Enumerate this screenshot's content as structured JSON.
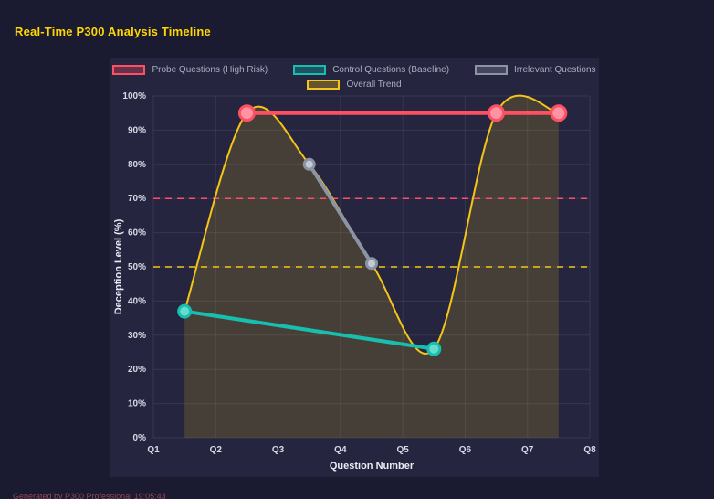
{
  "footer": {
    "text": "Generated by P300 Professional  19:05:43"
  },
  "legend": {
    "rows": [
      [
        0,
        1,
        2
      ],
      [
        3
      ]
    ]
  },
  "chart_data": {
    "type": "line",
    "title": "Real-Time P300 Analysis Timeline",
    "xlabel": "Question Number",
    "ylabel": "Deception Level (%)",
    "x_ticks": [
      "Q1",
      "Q2",
      "Q3",
      "Q4",
      "Q5",
      "Q6",
      "Q7",
      "Q8"
    ],
    "y_ticks": [
      "0%",
      "10%",
      "20%",
      "30%",
      "40%",
      "50%",
      "60%",
      "70%",
      "80%",
      "90%",
      "100%"
    ],
    "xlim": [
      1,
      8
    ],
    "ylim": [
      0,
      100
    ],
    "grid": true,
    "legend_position": "top",
    "series": [
      {
        "name": "Probe Questions (High Risk)",
        "color": "#ff4f63",
        "point_fill": "#ff93a4",
        "x": [
          2.5,
          6.5,
          7.5
        ],
        "values": [
          95,
          95,
          95
        ],
        "line_width": 4,
        "point_radius": 8,
        "smooth": false,
        "points": true
      },
      {
        "name": "Control Questions (Baseline)",
        "color": "#16bfae",
        "point_fill": "#66dccf",
        "x": [
          1.5,
          5.5
        ],
        "values": [
          37,
          26
        ],
        "line_width": 4,
        "point_radius": 6.5,
        "smooth": false,
        "points": true
      },
      {
        "name": "Irrelevant Questions",
        "color": "#8c94a4",
        "point_fill": "#c3c9d5",
        "x": [
          3.5,
          4.5
        ],
        "values": [
          80,
          51
        ],
        "line_width": 4,
        "point_radius": 5.5,
        "smooth": false,
        "points": true
      },
      {
        "name": "Overall Trend",
        "color": "#f5c518",
        "x": [
          1.5,
          2.5,
          3.5,
          4.5,
          5.5,
          6.5,
          7.5
        ],
        "values": [
          37,
          95,
          80,
          51,
          26,
          95,
          95
        ],
        "line_width": 2,
        "smooth": true,
        "fill": "rgba(245,197,24,0.16)",
        "points": false
      }
    ],
    "thresholds": [
      {
        "value": 70,
        "color": "#ff4d6d",
        "style": "dashed"
      },
      {
        "value": 50,
        "color": "#f5c518",
        "style": "dashed"
      }
    ]
  }
}
